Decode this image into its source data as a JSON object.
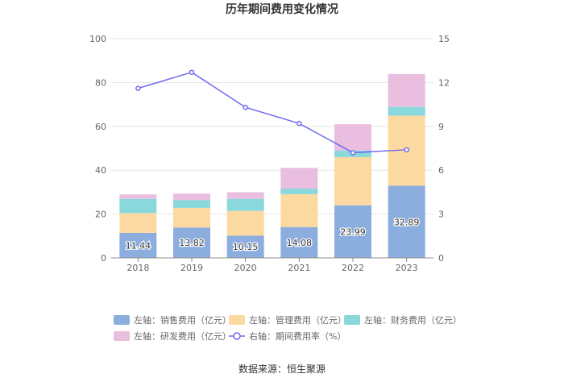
{
  "chart_data": {
    "type": "bar",
    "title": "历年期间费用变化情况",
    "categories": [
      "2018",
      "2019",
      "2020",
      "2021",
      "2022",
      "2023"
    ],
    "left_axis": {
      "min": 0,
      "max": 100,
      "ticks": [
        0,
        20,
        40,
        60,
        80,
        100
      ]
    },
    "right_axis": {
      "min": 0,
      "max": 15,
      "ticks": [
        0,
        3,
        6,
        9,
        12,
        15
      ]
    },
    "grid": true,
    "series": [
      {
        "name": "左轴：销售费用（亿元）",
        "type": "bar",
        "axis": "left",
        "color": "#8caedf",
        "values": [
          11.44,
          13.82,
          10.15,
          14.08,
          23.99,
          32.89
        ],
        "labels": [
          "11.44",
          "13.82",
          "10.15",
          "14.08",
          "23.99",
          "32.89"
        ]
      },
      {
        "name": "左轴：管理费用（亿元）",
        "type": "bar",
        "axis": "left",
        "color": "#fcd9a0",
        "values": [
          9.0,
          9.0,
          11.3,
          15.0,
          22.0,
          32.0
        ]
      },
      {
        "name": "左轴：财务费用（亿元）",
        "type": "bar",
        "axis": "left",
        "color": "#88d8dc",
        "values": [
          6.5,
          3.5,
          5.5,
          2.5,
          3.0,
          4.0
        ]
      },
      {
        "name": "左轴：研发费用（亿元）",
        "type": "bar",
        "axis": "left",
        "color": "#e9bedf",
        "values": [
          2.0,
          3.0,
          3.0,
          9.5,
          12.0,
          15.0
        ]
      },
      {
        "name": "右轴：期间费用率（%）",
        "type": "line",
        "axis": "right",
        "color": "#6f6bf0",
        "values": [
          11.6,
          12.7,
          10.3,
          9.2,
          7.2,
          7.4
        ]
      }
    ],
    "legend_position": "bottom"
  },
  "source": "数据来源：恒生聚源"
}
